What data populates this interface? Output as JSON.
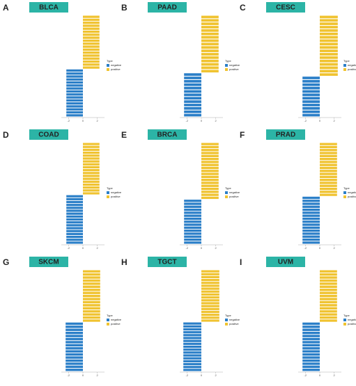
{
  "chart_data": [
    {
      "type": "bar",
      "label": "A",
      "title": "BLCA",
      "legend_title": "Type",
      "xlim": [
        -3,
        3
      ],
      "xticks": [
        -2,
        0,
        2
      ],
      "series": [
        {
          "name": "positive",
          "color": "#f0c330",
          "values": [
            2.3,
            2.3,
            2.3,
            2.3,
            2.3,
            2.3,
            2.3,
            2.3,
            2.3,
            2.3,
            2.3,
            2.3,
            2.3,
            2.3,
            2.3,
            2.3,
            2.3,
            2.3
          ]
        },
        {
          "name": "negative",
          "color": "#2b7fc8",
          "values": [
            -2.3,
            -2.3,
            -2.3,
            -2.3,
            -2.3,
            -2.3,
            -2.3,
            -2.3,
            -2.3,
            -2.3,
            -2.3,
            -2.3,
            -2.3,
            -2.3,
            -2.3,
            -2.3
          ]
        }
      ]
    },
    {
      "type": "bar",
      "label": "B",
      "title": "PAAD",
      "legend_title": "Type",
      "xlim": [
        -3,
        3
      ],
      "xticks": [
        -2,
        0,
        2
      ],
      "series": [
        {
          "name": "positive",
          "color": "#f0c330",
          "values": [
            2.4,
            2.4,
            2.4,
            2.4,
            2.4,
            2.4,
            2.4,
            2.4,
            2.4,
            2.4,
            2.4,
            2.4,
            2.4,
            2.4,
            2.4,
            2.4,
            2.4
          ]
        },
        {
          "name": "negative",
          "color": "#2b7fc8",
          "values": [
            -2.4,
            -2.4,
            -2.4,
            -2.4,
            -2.4,
            -2.4,
            -2.4,
            -2.4,
            -2.4,
            -2.4,
            -2.4,
            -2.4,
            -2.4
          ]
        }
      ]
    },
    {
      "type": "bar",
      "label": "C",
      "title": "CESC",
      "legend_title": "Type",
      "xlim": [
        -3,
        3
      ],
      "xticks": [
        -2,
        0,
        2
      ],
      "series": [
        {
          "name": "positive",
          "color": "#f0c330",
          "values": [
            2.5,
            2.5,
            2.5,
            2.5,
            2.5,
            2.5,
            2.5,
            2.5,
            2.5,
            2.5,
            2.5,
            2.5,
            2.5,
            2.5,
            2.5,
            2.5,
            2.5,
            2.5
          ]
        },
        {
          "name": "negative",
          "color": "#2b7fc8",
          "values": [
            -2.4,
            -2.4,
            -2.4,
            -2.4,
            -2.4,
            -2.4,
            -2.4,
            -2.4,
            -2.4,
            -2.4,
            -2.4,
            -2.4
          ]
        }
      ]
    },
    {
      "type": "bar",
      "label": "D",
      "title": "COAD",
      "legend_title": "Type",
      "xlim": [
        -3,
        3
      ],
      "xticks": [
        -2,
        0,
        2
      ],
      "series": [
        {
          "name": "positive",
          "color": "#f0c330",
          "values": [
            2.3,
            2.3,
            2.3,
            2.3,
            2.3,
            2.3,
            2.3,
            2.3,
            2.3,
            2.3,
            2.3,
            2.3,
            2.3,
            2.3,
            2.3,
            2.3,
            2.3,
            2.3
          ]
        },
        {
          "name": "negative",
          "color": "#2b7fc8",
          "values": [
            -2.3,
            -2.3,
            -2.3,
            -2.3,
            -2.3,
            -2.3,
            -2.3,
            -2.3,
            -2.3,
            -2.3,
            -2.3,
            -2.3,
            -2.3,
            -2.3,
            -2.3,
            -2.3,
            -2.3
          ]
        }
      ]
    },
    {
      "type": "bar",
      "label": "E",
      "title": "BRCA",
      "legend_title": "Type",
      "xlim": [
        -3,
        3
      ],
      "xticks": [
        -2,
        0,
        2
      ],
      "series": [
        {
          "name": "positive",
          "color": "#f0c330",
          "values": [
            2.4,
            2.4,
            2.4,
            2.4,
            2.4,
            2.4,
            2.4,
            2.4,
            2.4,
            2.4,
            2.4,
            2.4,
            2.4,
            2.4,
            2.4,
            2.4,
            2.4,
            2.4,
            2.4
          ]
        },
        {
          "name": "negative",
          "color": "#2b7fc8",
          "values": [
            -2.4,
            -2.4,
            -2.4,
            -2.4,
            -2.4,
            -2.4,
            -2.4,
            -2.4,
            -2.4,
            -2.4,
            -2.4,
            -2.4,
            -2.4,
            -2.4,
            -2.4
          ]
        }
      ]
    },
    {
      "type": "bar",
      "label": "F",
      "title": "PRAD",
      "legend_title": "Type",
      "xlim": [
        -3,
        3
      ],
      "xticks": [
        -2,
        0,
        2
      ],
      "series": [
        {
          "name": "positive",
          "color": "#f0c330",
          "values": [
            2.4,
            2.4,
            2.4,
            2.4,
            2.4,
            2.4,
            2.4,
            2.4,
            2.4,
            2.4,
            2.4,
            2.4,
            2.4,
            2.4,
            2.4,
            2.4,
            2.4,
            2.4
          ]
        },
        {
          "name": "negative",
          "color": "#2b7fc8",
          "values": [
            -2.4,
            -2.4,
            -2.4,
            -2.4,
            -2.4,
            -2.4,
            -2.4,
            -2.4,
            -2.4,
            -2.4,
            -2.4,
            -2.4,
            -2.4,
            -2.4,
            -2.4,
            -2.4
          ]
        }
      ]
    },
    {
      "type": "bar",
      "label": "G",
      "title": "SKCM",
      "legend_title": "Type",
      "xlim": [
        -3,
        3
      ],
      "xticks": [
        -2,
        0,
        2
      ],
      "series": [
        {
          "name": "positive",
          "color": "#f0c330",
          "values": [
            2.4,
            2.4,
            2.4,
            2.4,
            2.4,
            2.4,
            2.4,
            2.4,
            2.4,
            2.4,
            2.4,
            2.4,
            2.4,
            2.4,
            2.4,
            2.4,
            2.4
          ]
        },
        {
          "name": "negative",
          "color": "#2b7fc8",
          "values": [
            -2.4,
            -2.4,
            -2.4,
            -2.4,
            -2.4,
            -2.4,
            -2.4,
            -2.4,
            -2.4,
            -2.4,
            -2.4,
            -2.4,
            -2.4,
            -2.4,
            -2.4,
            -2.4
          ]
        }
      ]
    },
    {
      "type": "bar",
      "label": "H",
      "title": "TGCT",
      "legend_title": "Type",
      "xlim": [
        -3,
        3
      ],
      "xticks": [
        -2,
        0,
        2
      ],
      "series": [
        {
          "name": "positive",
          "color": "#f0c330",
          "values": [
            2.5,
            2.5,
            2.5,
            2.5,
            2.5,
            2.5,
            2.5,
            2.5,
            2.5,
            2.5,
            2.5,
            2.5,
            2.5,
            2.5,
            2.5,
            2.5,
            2.5,
            2.5
          ]
        },
        {
          "name": "negative",
          "color": "#2b7fc8",
          "values": [
            -2.5,
            -2.5,
            -2.5,
            -2.5,
            -2.5,
            -2.5,
            -2.5,
            -2.5,
            -2.5,
            -2.5,
            -2.5,
            -2.5,
            -2.5,
            -2.5,
            -2.5,
            -2.5,
            -2.5
          ]
        }
      ]
    },
    {
      "type": "bar",
      "label": "I",
      "title": "UVM",
      "legend_title": "Type",
      "xlim": [
        -3,
        3
      ],
      "xticks": [
        -2,
        0,
        2
      ],
      "series": [
        {
          "name": "positive",
          "color": "#f0c330",
          "values": [
            2.4,
            2.4,
            2.4,
            2.4,
            2.4,
            2.4,
            2.4,
            2.4,
            2.4,
            2.4,
            2.4,
            2.4,
            2.4,
            2.4,
            2.4,
            2.4,
            2.4
          ]
        },
        {
          "name": "negative",
          "color": "#2b7fc8",
          "values": [
            -2.4,
            -2.4,
            -2.4,
            -2.4,
            -2.4,
            -2.4,
            -2.4,
            -2.4,
            -2.4,
            -2.4,
            -2.4,
            -2.4,
            -2.4,
            -2.4,
            -2.4,
            -2.4
          ]
        }
      ]
    }
  ]
}
